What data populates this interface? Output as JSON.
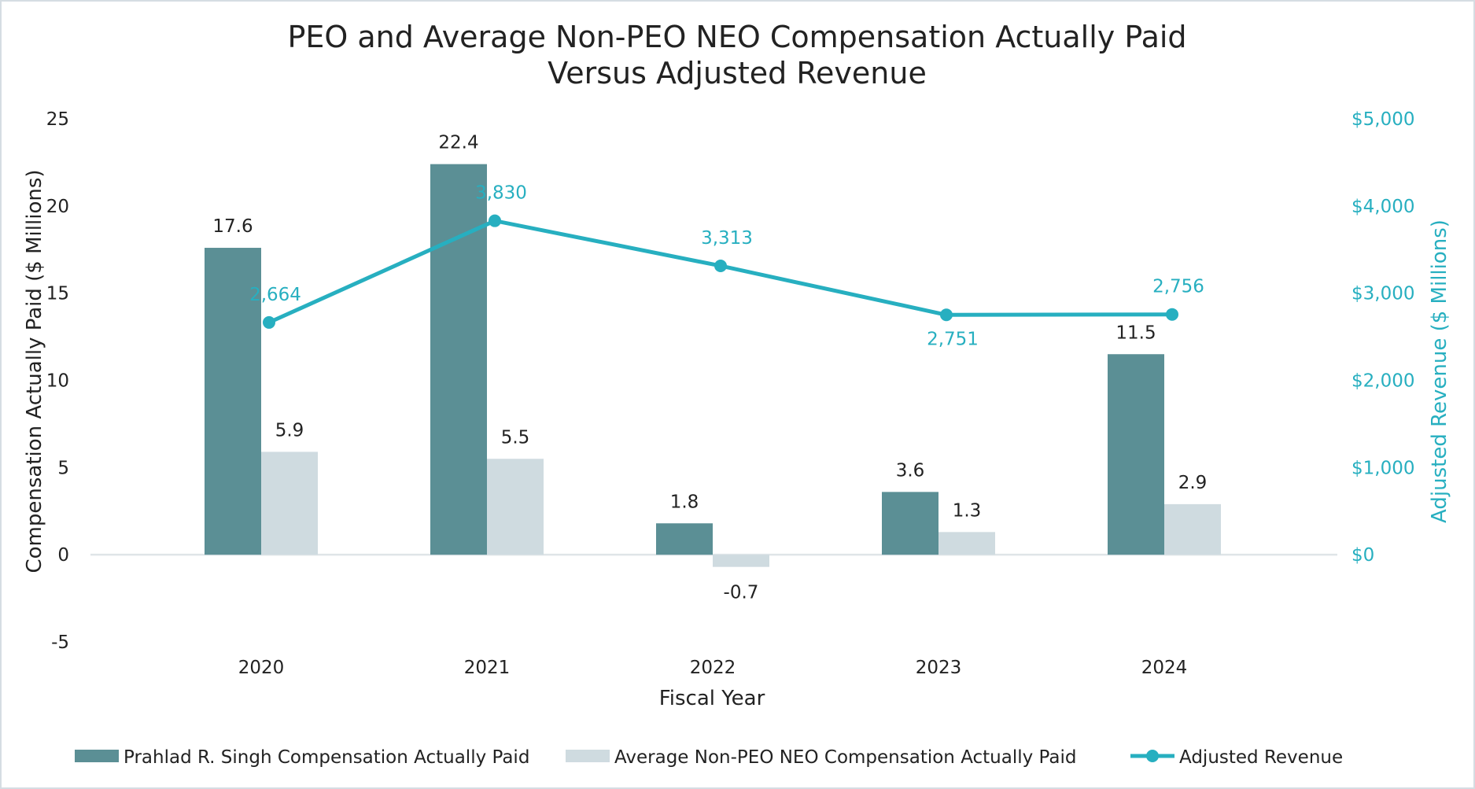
{
  "chart_data": {
    "type": "bar",
    "title_lines": [
      "PEO and Average Non-PEO NEO Compensation Actually Paid",
      "Versus Adjusted Revenue"
    ],
    "xlabel": "Fiscal Year",
    "ylabel": "Compensation Actually Paid ($ Millions)",
    "y2label": "Adjusted Revenue ($ Millions)",
    "categories": [
      "2020",
      "2021",
      "2022",
      "2023",
      "2024"
    ],
    "ylim": [
      -5,
      25
    ],
    "yticks": [
      -5,
      0,
      5,
      10,
      15,
      20,
      25
    ],
    "ytick_labels": [
      "-5",
      "0",
      "5",
      "10",
      "15",
      "20",
      "25"
    ],
    "y2lim": [
      -1000,
      5000
    ],
    "y2ticks": [
      0,
      1000,
      2000,
      3000,
      4000,
      5000
    ],
    "y2tick_labels": [
      "$0",
      "$1,000",
      "$2,000",
      "$3,000",
      "$4,000",
      "$5,000"
    ],
    "series": [
      {
        "name": "Prahlad R. Singh Compensation Actually Paid",
        "type": "bar",
        "axis": "left",
        "color": "#5b8f95",
        "values": [
          17.6,
          22.4,
          1.8,
          3.6,
          11.5
        ],
        "labels": [
          "17.6",
          "22.4",
          "1.8",
          "3.6",
          "11.5"
        ]
      },
      {
        "name": "Average Non-PEO NEO Compensation Actually Paid",
        "type": "bar",
        "axis": "left",
        "color": "#cfdbe0",
        "values": [
          5.9,
          5.5,
          -0.7,
          1.3,
          2.9
        ],
        "labels": [
          "5.9",
          "5.5",
          "-0.7",
          "1.3",
          "2.9"
        ]
      },
      {
        "name": "Adjusted Revenue",
        "type": "line",
        "axis": "right",
        "color": "#27afc0",
        "values": [
          2664,
          3830,
          3313,
          2751,
          2756
        ],
        "labels": [
          "2,664",
          "3,830",
          "3,313",
          "2,751",
          "2,756"
        ],
        "label_positions": [
          "above",
          "above",
          "above",
          "below",
          "above"
        ]
      }
    ],
    "legend_position": "bottom",
    "colors": {
      "text": "#222222",
      "axis_right": "#27afc0",
      "baseline": "#dfe5e8"
    }
  }
}
